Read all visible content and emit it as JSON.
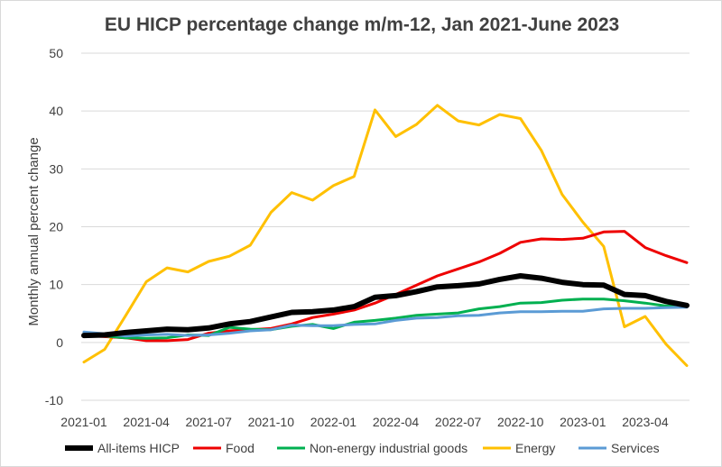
{
  "chart_data": {
    "type": "line",
    "title": "EU HICP percentage change m/m-12, Jan 2021-June 2023",
    "xlabel": "",
    "ylabel": "Monthly annual percent change",
    "ylim": [
      -10,
      50
    ],
    "yticks": [
      -10,
      0,
      10,
      20,
      30,
      40,
      50
    ],
    "grid": true,
    "legend": "bottom",
    "x": [
      "2021-01",
      "2021-02",
      "2021-03",
      "2021-04",
      "2021-05",
      "2021-06",
      "2021-07",
      "2021-08",
      "2021-09",
      "2021-10",
      "2021-11",
      "2021-12",
      "2022-01",
      "2022-02",
      "2022-03",
      "2022-04",
      "2022-05",
      "2022-06",
      "2022-07",
      "2022-08",
      "2022-09",
      "2022-10",
      "2022-11",
      "2022-12",
      "2023-01",
      "2023-02",
      "2023-03",
      "2023-04",
      "2023-05",
      "2023-06"
    ],
    "xtick_labels": [
      "2021-01",
      "2021-04",
      "2021-07",
      "2021-10",
      "2022-01",
      "2022-04",
      "2022-07",
      "2022-10",
      "2023-01",
      "2023-04"
    ],
    "series": [
      {
        "name": "All-items HICP",
        "color": "#000000",
        "width": 6,
        "values": [
          1.2,
          1.3,
          1.7,
          2.0,
          2.3,
          2.2,
          2.5,
          3.2,
          3.6,
          4.4,
          5.2,
          5.3,
          5.6,
          6.2,
          7.8,
          8.1,
          8.8,
          9.6,
          9.8,
          10.1,
          10.9,
          11.5,
          11.1,
          10.4,
          10.0,
          9.9,
          8.3,
          8.1,
          7.1,
          6.4
        ]
      },
      {
        "name": "Food",
        "color": "#ee0000",
        "width": 3,
        "values": [
          1.2,
          1.0,
          0.8,
          0.3,
          0.3,
          0.5,
          1.6,
          2.0,
          2.2,
          2.4,
          3.2,
          4.3,
          4.9,
          5.6,
          6.8,
          8.3,
          9.9,
          11.5,
          12.7,
          13.9,
          15.4,
          17.3,
          17.9,
          17.8,
          18.0,
          19.1,
          19.2,
          16.4,
          15.0,
          13.8
        ]
      },
      {
        "name": "Non-energy industrial goods",
        "color": "#00b050",
        "width": 3,
        "values": [
          1.5,
          1.1,
          0.8,
          0.7,
          0.8,
          1.3,
          1.2,
          2.6,
          2.3,
          2.2,
          2.8,
          3.1,
          2.4,
          3.5,
          3.8,
          4.2,
          4.7,
          4.9,
          5.1,
          5.8,
          6.2,
          6.8,
          6.9,
          7.3,
          7.5,
          7.5,
          7.2,
          6.8,
          6.3,
          6.4
        ]
      },
      {
        "name": "Energy",
        "color": "#ffc000",
        "width": 3,
        "values": [
          -3.4,
          -1.2,
          4.6,
          10.5,
          12.9,
          12.2,
          14.0,
          14.9,
          16.8,
          22.5,
          25.9,
          24.6,
          27.1,
          28.7,
          40.2,
          35.6,
          37.7,
          41.0,
          38.3,
          37.6,
          39.4,
          38.7,
          33.2,
          25.6,
          20.8,
          16.6,
          2.7,
          4.5,
          -0.3,
          -4.0
        ]
      },
      {
        "name": "Services",
        "color": "#5b9bd5",
        "width": 3,
        "values": [
          1.8,
          1.5,
          1.1,
          1.3,
          1.4,
          1.2,
          1.3,
          1.6,
          2.0,
          2.2,
          3.0,
          2.9,
          2.9,
          3.1,
          3.2,
          3.8,
          4.2,
          4.3,
          4.6,
          4.7,
          5.1,
          5.3,
          5.3,
          5.4,
          5.4,
          5.8,
          5.9,
          5.9,
          6.0,
          6.1
        ]
      }
    ]
  }
}
